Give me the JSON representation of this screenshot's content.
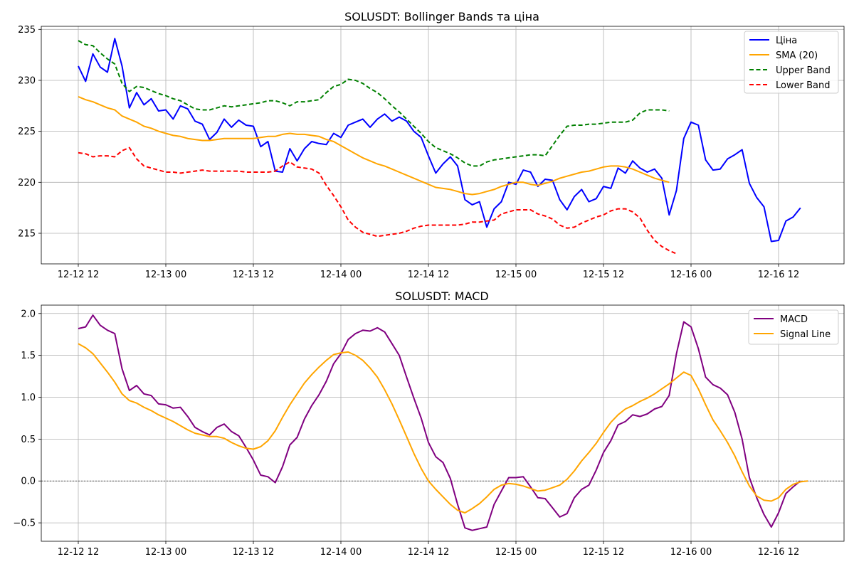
{
  "chart_data": [
    {
      "type": "line",
      "title": "SOLUSDT: Bollinger Bands та ціна",
      "xlabel": "",
      "ylabel": "",
      "x_ticks": [
        "12-12 12",
        "12-13 00",
        "12-13 12",
        "12-14 00",
        "12-14 12",
        "12-15 00",
        "12-15 12",
        "12-16 00",
        "12-16 12"
      ],
      "ylim": [
        212,
        235.3
      ],
      "y_ticks": [
        215,
        220,
        225,
        230,
        235
      ],
      "grid": true,
      "legend": "top-right",
      "series": [
        {
          "name": "Ціна",
          "color": "#0000ff",
          "dash": "solid",
          "values": [
            231.4,
            229.9,
            232.6,
            231.3,
            230.8,
            234.1,
            231.4,
            227.3,
            228.8,
            227.6,
            228.2,
            227.0,
            227.1,
            226.2,
            227.5,
            227.2,
            226.0,
            225.7,
            224.2,
            224.9,
            226.2,
            225.4,
            226.1,
            225.6,
            225.5,
            223.5,
            224.0,
            221.1,
            221.0,
            223.3,
            222.1,
            223.3,
            224.0,
            223.8,
            223.7,
            224.8,
            224.4,
            225.6,
            225.9,
            226.2,
            225.4,
            226.2,
            226.7,
            226.0,
            226.4,
            226.0,
            225.0,
            224.4,
            222.6,
            220.9,
            221.8,
            222.5,
            221.6,
            218.3,
            217.8,
            218.1,
            215.6,
            217.4,
            218.1,
            220.0,
            219.8,
            221.2,
            221.0,
            219.6,
            220.3,
            220.2,
            218.3,
            217.3,
            218.6,
            219.3,
            218.1,
            218.4,
            219.6,
            219.4,
            221.4,
            220.9,
            222.1,
            221.4,
            221.0,
            221.3,
            220.4,
            216.8,
            219.2,
            224.3,
            225.9,
            225.6,
            222.2,
            221.2,
            221.3,
            222.3,
            222.7,
            223.2,
            219.9,
            218.5,
            217.6,
            214.2,
            214.3,
            216.2,
            216.6,
            217.5
          ]
        },
        {
          "name": "SMA (20)",
          "color": "#ffa500",
          "dash": "solid",
          "values": [
            228.4,
            228.1,
            227.9,
            227.6,
            227.3,
            227.1,
            226.5,
            226.2,
            225.9,
            225.5,
            225.3,
            225.0,
            224.8,
            224.6,
            224.5,
            224.3,
            224.2,
            224.1,
            224.1,
            224.2,
            224.3,
            224.3,
            224.3,
            224.3,
            224.3,
            224.4,
            224.5,
            224.5,
            224.7,
            224.8,
            224.7,
            224.7,
            224.6,
            224.5,
            224.2,
            224.0,
            223.6,
            223.2,
            222.8,
            222.4,
            222.1,
            221.8,
            221.6,
            221.3,
            221.0,
            220.7,
            220.4,
            220.1,
            219.8,
            219.5,
            219.4,
            219.3,
            219.1,
            218.9,
            218.8,
            218.9,
            219.1,
            219.3,
            219.6,
            219.8,
            220.0,
            220.0,
            219.8,
            219.7,
            219.9,
            220.1,
            220.4,
            220.6,
            220.8,
            221.0,
            221.1,
            221.3,
            221.5,
            221.6,
            221.6,
            221.5,
            221.3,
            221.0,
            220.7,
            220.4,
            220.2,
            220.0
          ]
        },
        {
          "name": "Upper Band",
          "color": "#008000",
          "dash": "dashed",
          "values": [
            233.9,
            233.5,
            233.4,
            232.7,
            232.1,
            231.6,
            229.7,
            228.9,
            229.4,
            229.3,
            229.0,
            228.7,
            228.5,
            228.2,
            228.0,
            227.6,
            227.2,
            227.1,
            227.1,
            227.3,
            227.5,
            227.4,
            227.5,
            227.6,
            227.7,
            227.8,
            228.0,
            228.0,
            227.8,
            227.5,
            227.9,
            227.9,
            228.0,
            228.1,
            228.8,
            229.4,
            229.6,
            230.1,
            230.0,
            229.7,
            229.2,
            228.8,
            228.2,
            227.5,
            226.9,
            226.2,
            225.5,
            224.8,
            224.0,
            223.4,
            223.1,
            222.8,
            222.4,
            221.9,
            221.6,
            221.6,
            222.0,
            222.2,
            222.3,
            222.4,
            222.5,
            222.6,
            222.7,
            222.7,
            222.6,
            223.6,
            224.6,
            225.5,
            225.6,
            225.6,
            225.7,
            225.7,
            225.8,
            225.9,
            225.9,
            225.9,
            226.1,
            226.8,
            227.1,
            227.1,
            227.1,
            227.0
          ]
        },
        {
          "name": "Lower Band",
          "color": "#ff0000",
          "dash": "dashed",
          "values": [
            222.9,
            222.8,
            222.5,
            222.6,
            222.6,
            222.5,
            223.1,
            223.4,
            222.3,
            221.6,
            221.4,
            221.2,
            221.0,
            221.0,
            220.9,
            221.0,
            221.1,
            221.2,
            221.1,
            221.1,
            221.1,
            221.1,
            221.1,
            221.0,
            221.0,
            221.0,
            221.0,
            221.1,
            221.6,
            222.0,
            221.5,
            221.4,
            221.3,
            220.9,
            219.7,
            218.7,
            217.6,
            216.3,
            215.6,
            215.1,
            214.9,
            214.7,
            214.8,
            214.9,
            215.0,
            215.2,
            215.5,
            215.7,
            215.8,
            215.8,
            215.8,
            215.8,
            215.8,
            215.9,
            216.1,
            216.1,
            216.2,
            216.3,
            216.9,
            217.1,
            217.3,
            217.3,
            217.3,
            216.9,
            216.7,
            216.4,
            215.8,
            215.5,
            215.6,
            216.0,
            216.3,
            216.6,
            216.8,
            217.2,
            217.4,
            217.4,
            217.1,
            216.5,
            215.3,
            214.3,
            213.7,
            213.3,
            213.0
          ]
        }
      ]
    },
    {
      "type": "line",
      "title": "SOLUSDT: MACD",
      "xlabel": "",
      "ylabel": "",
      "x_ticks": [
        "12-12 12",
        "12-13 00",
        "12-13 12",
        "12-14 00",
        "12-14 12",
        "12-15 00",
        "12-15 12",
        "12-16 00",
        "12-16 12"
      ],
      "ylim": [
        -0.72,
        2.1
      ],
      "y_ticks": [
        -0.5,
        0.0,
        0.5,
        1.0,
        1.5,
        2.0
      ],
      "y_tick_labels": [
        "−0.5",
        "0.0",
        "0.5",
        "1.0",
        "1.5",
        "2.0"
      ],
      "zero_line": true,
      "grid": true,
      "legend": "top-right",
      "series": [
        {
          "name": "MACD",
          "color": "#800080",
          "dash": "solid",
          "values": [
            1.82,
            1.84,
            1.98,
            1.86,
            1.8,
            1.76,
            1.34,
            1.08,
            1.14,
            1.04,
            1.02,
            0.92,
            0.91,
            0.87,
            0.88,
            0.77,
            0.64,
            0.59,
            0.55,
            0.64,
            0.68,
            0.59,
            0.54,
            0.4,
            0.25,
            0.07,
            0.05,
            -0.02,
            0.17,
            0.43,
            0.52,
            0.74,
            0.9,
            1.03,
            1.19,
            1.4,
            1.52,
            1.69,
            1.76,
            1.8,
            1.79,
            1.83,
            1.78,
            1.64,
            1.5,
            1.24,
            0.99,
            0.75,
            0.46,
            0.29,
            0.22,
            0.03,
            -0.28,
            -0.56,
            -0.59,
            -0.57,
            -0.55,
            -0.28,
            -0.12,
            0.04,
            0.04,
            0.05,
            -0.07,
            -0.2,
            -0.21,
            -0.32,
            -0.43,
            -0.39,
            -0.2,
            -0.1,
            -0.05,
            0.13,
            0.34,
            0.48,
            0.67,
            0.71,
            0.79,
            0.77,
            0.8,
            0.86,
            0.89,
            1.02,
            1.52,
            1.9,
            1.84,
            1.58,
            1.24,
            1.15,
            1.11,
            1.03,
            0.82,
            0.5,
            0.04,
            -0.2,
            -0.4,
            -0.55,
            -0.38,
            -0.15,
            -0.07,
            0.0
          ]
        },
        {
          "name": "Signal Line",
          "color": "#ffa500",
          "dash": "solid",
          "values": [
            1.64,
            1.59,
            1.52,
            1.41,
            1.3,
            1.18,
            1.04,
            0.96,
            0.93,
            0.88,
            0.84,
            0.79,
            0.75,
            0.71,
            0.66,
            0.61,
            0.57,
            0.55,
            0.53,
            0.53,
            0.51,
            0.46,
            0.42,
            0.39,
            0.38,
            0.41,
            0.48,
            0.6,
            0.76,
            0.91,
            1.04,
            1.17,
            1.27,
            1.36,
            1.44,
            1.51,
            1.53,
            1.54,
            1.5,
            1.44,
            1.35,
            1.24,
            1.09,
            0.92,
            0.73,
            0.53,
            0.33,
            0.15,
            0.0,
            -0.1,
            -0.19,
            -0.28,
            -0.35,
            -0.38,
            -0.33,
            -0.27,
            -0.19,
            -0.1,
            -0.05,
            -0.03,
            -0.04,
            -0.06,
            -0.09,
            -0.12,
            -0.11,
            -0.08,
            -0.05,
            0.02,
            0.12,
            0.24,
            0.34,
            0.45,
            0.58,
            0.7,
            0.79,
            0.86,
            0.9,
            0.95,
            0.99,
            1.04,
            1.1,
            1.16,
            1.23,
            1.3,
            1.26,
            1.1,
            0.91,
            0.73,
            0.6,
            0.46,
            0.3,
            0.11,
            -0.06,
            -0.18,
            -0.23,
            -0.24,
            -0.2,
            -0.1,
            -0.04,
            -0.01,
            0.0
          ]
        }
      ]
    }
  ]
}
